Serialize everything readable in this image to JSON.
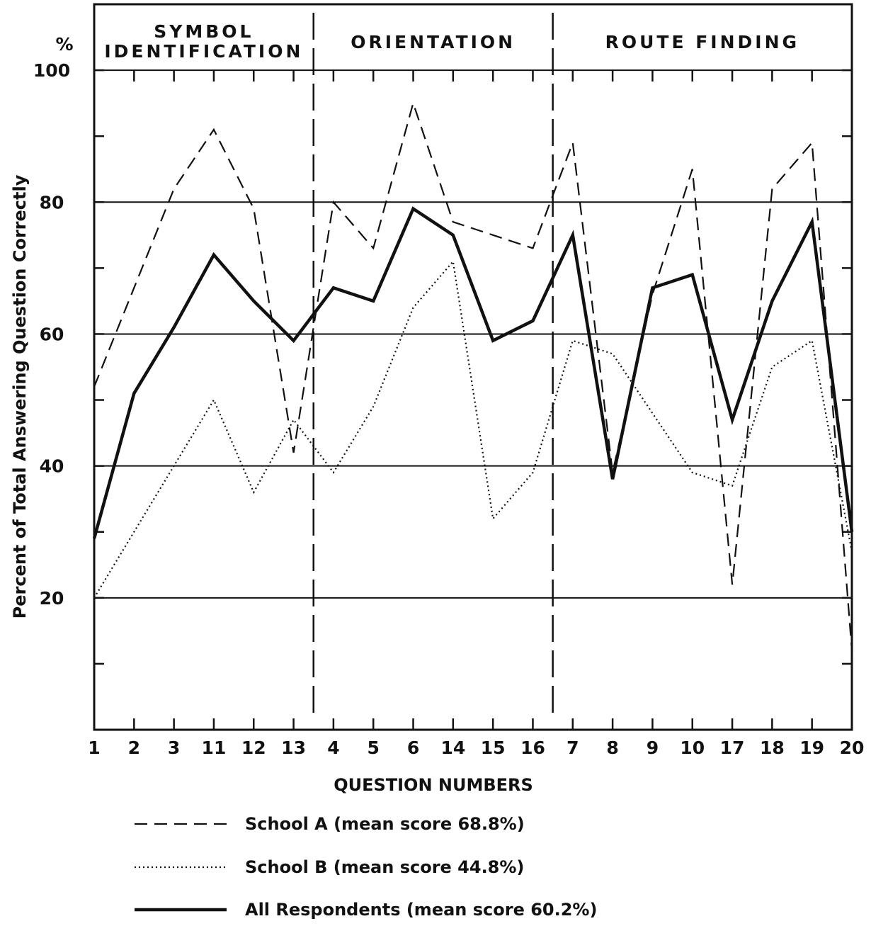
{
  "chart_data": {
    "type": "line",
    "title": "",
    "xlabel": "QUESTION NUMBERS",
    "ylabel": "Percent of Total Answering Question Correctly",
    "yunit": "%",
    "ylim": [
      0,
      110
    ],
    "yticks": [
      20,
      40,
      60,
      80,
      100
    ],
    "categories": [
      "1",
      "2",
      "3",
      "11",
      "12",
      "13",
      "4",
      "5",
      "6",
      "14",
      "15",
      "16",
      "7",
      "8",
      "9",
      "10",
      "17",
      "18",
      "19",
      "20"
    ],
    "sections": [
      {
        "label_lines": [
          "SYMBOL",
          "IDENTIFICATION"
        ],
        "start": 0,
        "end": 5
      },
      {
        "label_lines": [
          "ORIENTATION"
        ],
        "start": 6,
        "end": 11
      },
      {
        "label_lines": [
          "ROUTE   FINDING"
        ],
        "start": 12,
        "end": 19
      }
    ],
    "series": [
      {
        "name": "School A",
        "legend": "School  A  (mean score  68.8%)",
        "style": "dashed",
        "values": [
          52,
          67,
          82,
          91,
          79,
          42,
          80,
          73,
          95,
          77,
          75,
          73,
          89,
          39,
          66,
          85,
          22,
          82,
          89,
          12
        ]
      },
      {
        "name": "School B",
        "legend": "School  B  (mean score  44.8%)",
        "style": "dotted",
        "values": [
          20,
          30,
          40,
          50,
          36,
          47,
          39,
          49,
          64,
          71,
          32,
          39,
          59,
          57,
          48,
          39,
          37,
          55,
          59,
          27
        ]
      },
      {
        "name": "All Respondents",
        "legend": "All  Respondents  (mean score  60.2%)",
        "style": "solid",
        "values": [
          29,
          51,
          61,
          72,
          65,
          59,
          67,
          65,
          79,
          75,
          59,
          62,
          75,
          38,
          67,
          69,
          47,
          65,
          77,
          30
        ]
      }
    ],
    "grid": true,
    "legend_position": "bottom"
  }
}
